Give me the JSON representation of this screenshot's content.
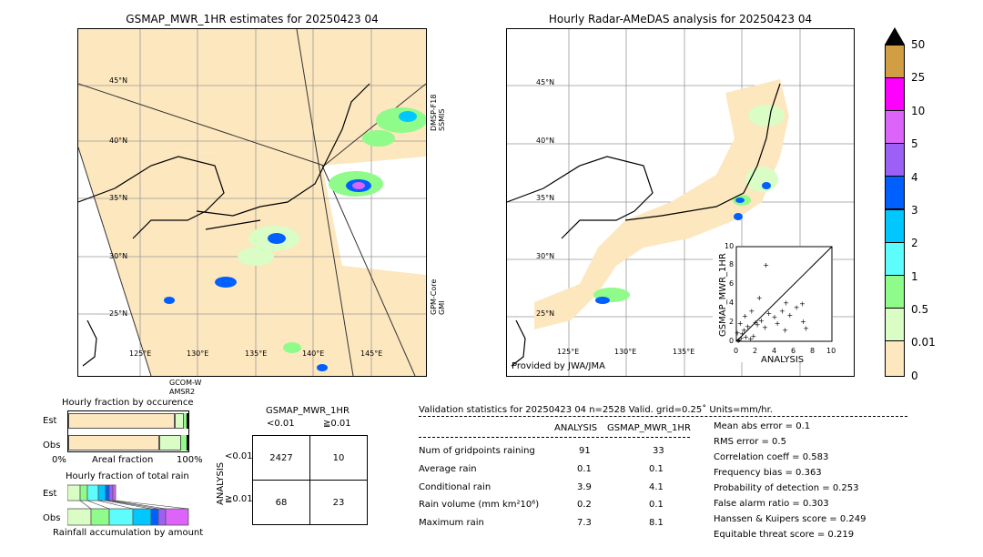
{
  "colors": {
    "light_tan": "#fde7bf",
    "pale_green": "#d9fdc5",
    "green": "#8ffb8a",
    "aqua": "#5efdfd",
    "cyan": "#00c8ff",
    "blue": "#0060ff",
    "violet": "#9c60f5",
    "orchid": "#dc64fa",
    "magenta": "#ff00ff",
    "ochre": "#d29e44"
  },
  "left_map": {
    "title": "GSMAP_MWR_1HR estimates for 20250423 04",
    "lat_labels": [
      "45°N",
      "40°N",
      "35°N",
      "30°N",
      "25°N"
    ],
    "lon_labels": [
      "125°E",
      "130°E",
      "135°E",
      "140°E",
      "145°E"
    ],
    "sat_labels": {
      "right_top": "DMSP-F18\nSSMIS",
      "right_bottom": "GPM-Core\nGMI",
      "bottom": "GCOM-W\nAMSR2"
    }
  },
  "right_map": {
    "title": "Hourly Radar-AMeDAS analysis for 20250423 04",
    "lat_labels": [
      "45°N",
      "40°N",
      "35°N",
      "30°N",
      "25°N"
    ],
    "lon_labels": [
      "125°E",
      "130°E",
      "135°E"
    ],
    "credit": "Provided by JWA/JMA"
  },
  "colorbar": {
    "labels": [
      "50",
      "25",
      "10",
      "5",
      "4",
      "3",
      "2",
      "1",
      "0.5",
      "0.01",
      "0"
    ]
  },
  "scatter": {
    "ylabel": "GSMAP_MWR_1HR",
    "xlabel": "ANALYSIS",
    "ticks": [
      "0",
      "2",
      "4",
      "6",
      "8",
      "10"
    ]
  },
  "chart_data": [
    {
      "type": "scatter",
      "xlabel": "ANALYSIS",
      "ylabel": "GSMAP_MWR_1HR",
      "xlim": [
        0,
        10
      ],
      "ylim": [
        0,
        10
      ],
      "points": [
        [
          0.2,
          0.1
        ],
        [
          0.3,
          0.2
        ],
        [
          0.5,
          0.4
        ],
        [
          0.6,
          0.8
        ],
        [
          0.8,
          1.2
        ],
        [
          1.0,
          0.5
        ],
        [
          1.2,
          1.6
        ],
        [
          1.5,
          0.3
        ],
        [
          2.0,
          2.0
        ],
        [
          2.2,
          1.8
        ],
        [
          2.6,
          2.2
        ],
        [
          3.0,
          1.5
        ],
        [
          3.1,
          8.1
        ],
        [
          3.4,
          3.0
        ],
        [
          4.0,
          2.6
        ],
        [
          4.3,
          1.9
        ],
        [
          4.8,
          3.2
        ],
        [
          5.2,
          4.1
        ],
        [
          5.6,
          2.8
        ],
        [
          6.3,
          3.6
        ],
        [
          6.9,
          4.0
        ],
        [
          7.3,
          1.4
        ],
        [
          7.0,
          2.1
        ],
        [
          0.4,
          1.9
        ],
        [
          0.9,
          2.7
        ],
        [
          1.6,
          3.2
        ],
        [
          2.4,
          4.6
        ],
        [
          0.1,
          0.9
        ],
        [
          1.8,
          0.6
        ],
        [
          5.1,
          1.2
        ]
      ]
    },
    {
      "type": "bar",
      "title": "Hourly fraction by occurence",
      "categories": [
        "Est",
        "Obs"
      ],
      "xlabel": "Areal fraction",
      "xticks": [
        "0%",
        "100%"
      ]
    },
    {
      "type": "bar",
      "title": "Hourly fraction of total rain",
      "categories": [
        "Est",
        "Obs"
      ],
      "xlabel": "Rainfall accumulation by amount"
    }
  ],
  "contingency": {
    "title": "GSMAP_MWR_1HR",
    "col_labels": [
      "<0.01",
      "≧0.01"
    ],
    "row_labels": [
      "<0.01",
      "≧0.01"
    ],
    "ylabel": "ANALYSIS",
    "cells": [
      [
        "2427",
        "10"
      ],
      [
        "68",
        "23"
      ]
    ]
  },
  "validation": {
    "header": "Validation statistics for 20250423 04  n=2528 Valid. grid=0.25˚ Units=mm/hr.",
    "col_analysis": "ANALYSIS",
    "col_gsmap": "GSMAP_MWR_1HR",
    "rows": [
      {
        "label": "Num of gridpoints raining",
        "a": "91",
        "g": "33"
      },
      {
        "label": "Average rain",
        "a": "0.1",
        "g": "0.1"
      },
      {
        "label": "Conditional rain",
        "a": "3.9",
        "g": "4.1"
      },
      {
        "label": "Rain volume (mm km²10⁶)",
        "a": "0.2",
        "g": "0.1"
      },
      {
        "label": "Maximum rain",
        "a": "7.3",
        "g": "8.1"
      }
    ],
    "scores": [
      "Mean abs error =    0.1",
      "RMS error =    0.5",
      "Correlation coeff =  0.583",
      "Frequency bias =  0.363",
      "Probability of detection =  0.253",
      "False alarm ratio =  0.303",
      "Hanssen & Kuipers score =  0.249",
      "Equitable threat score =  0.219"
    ]
  }
}
